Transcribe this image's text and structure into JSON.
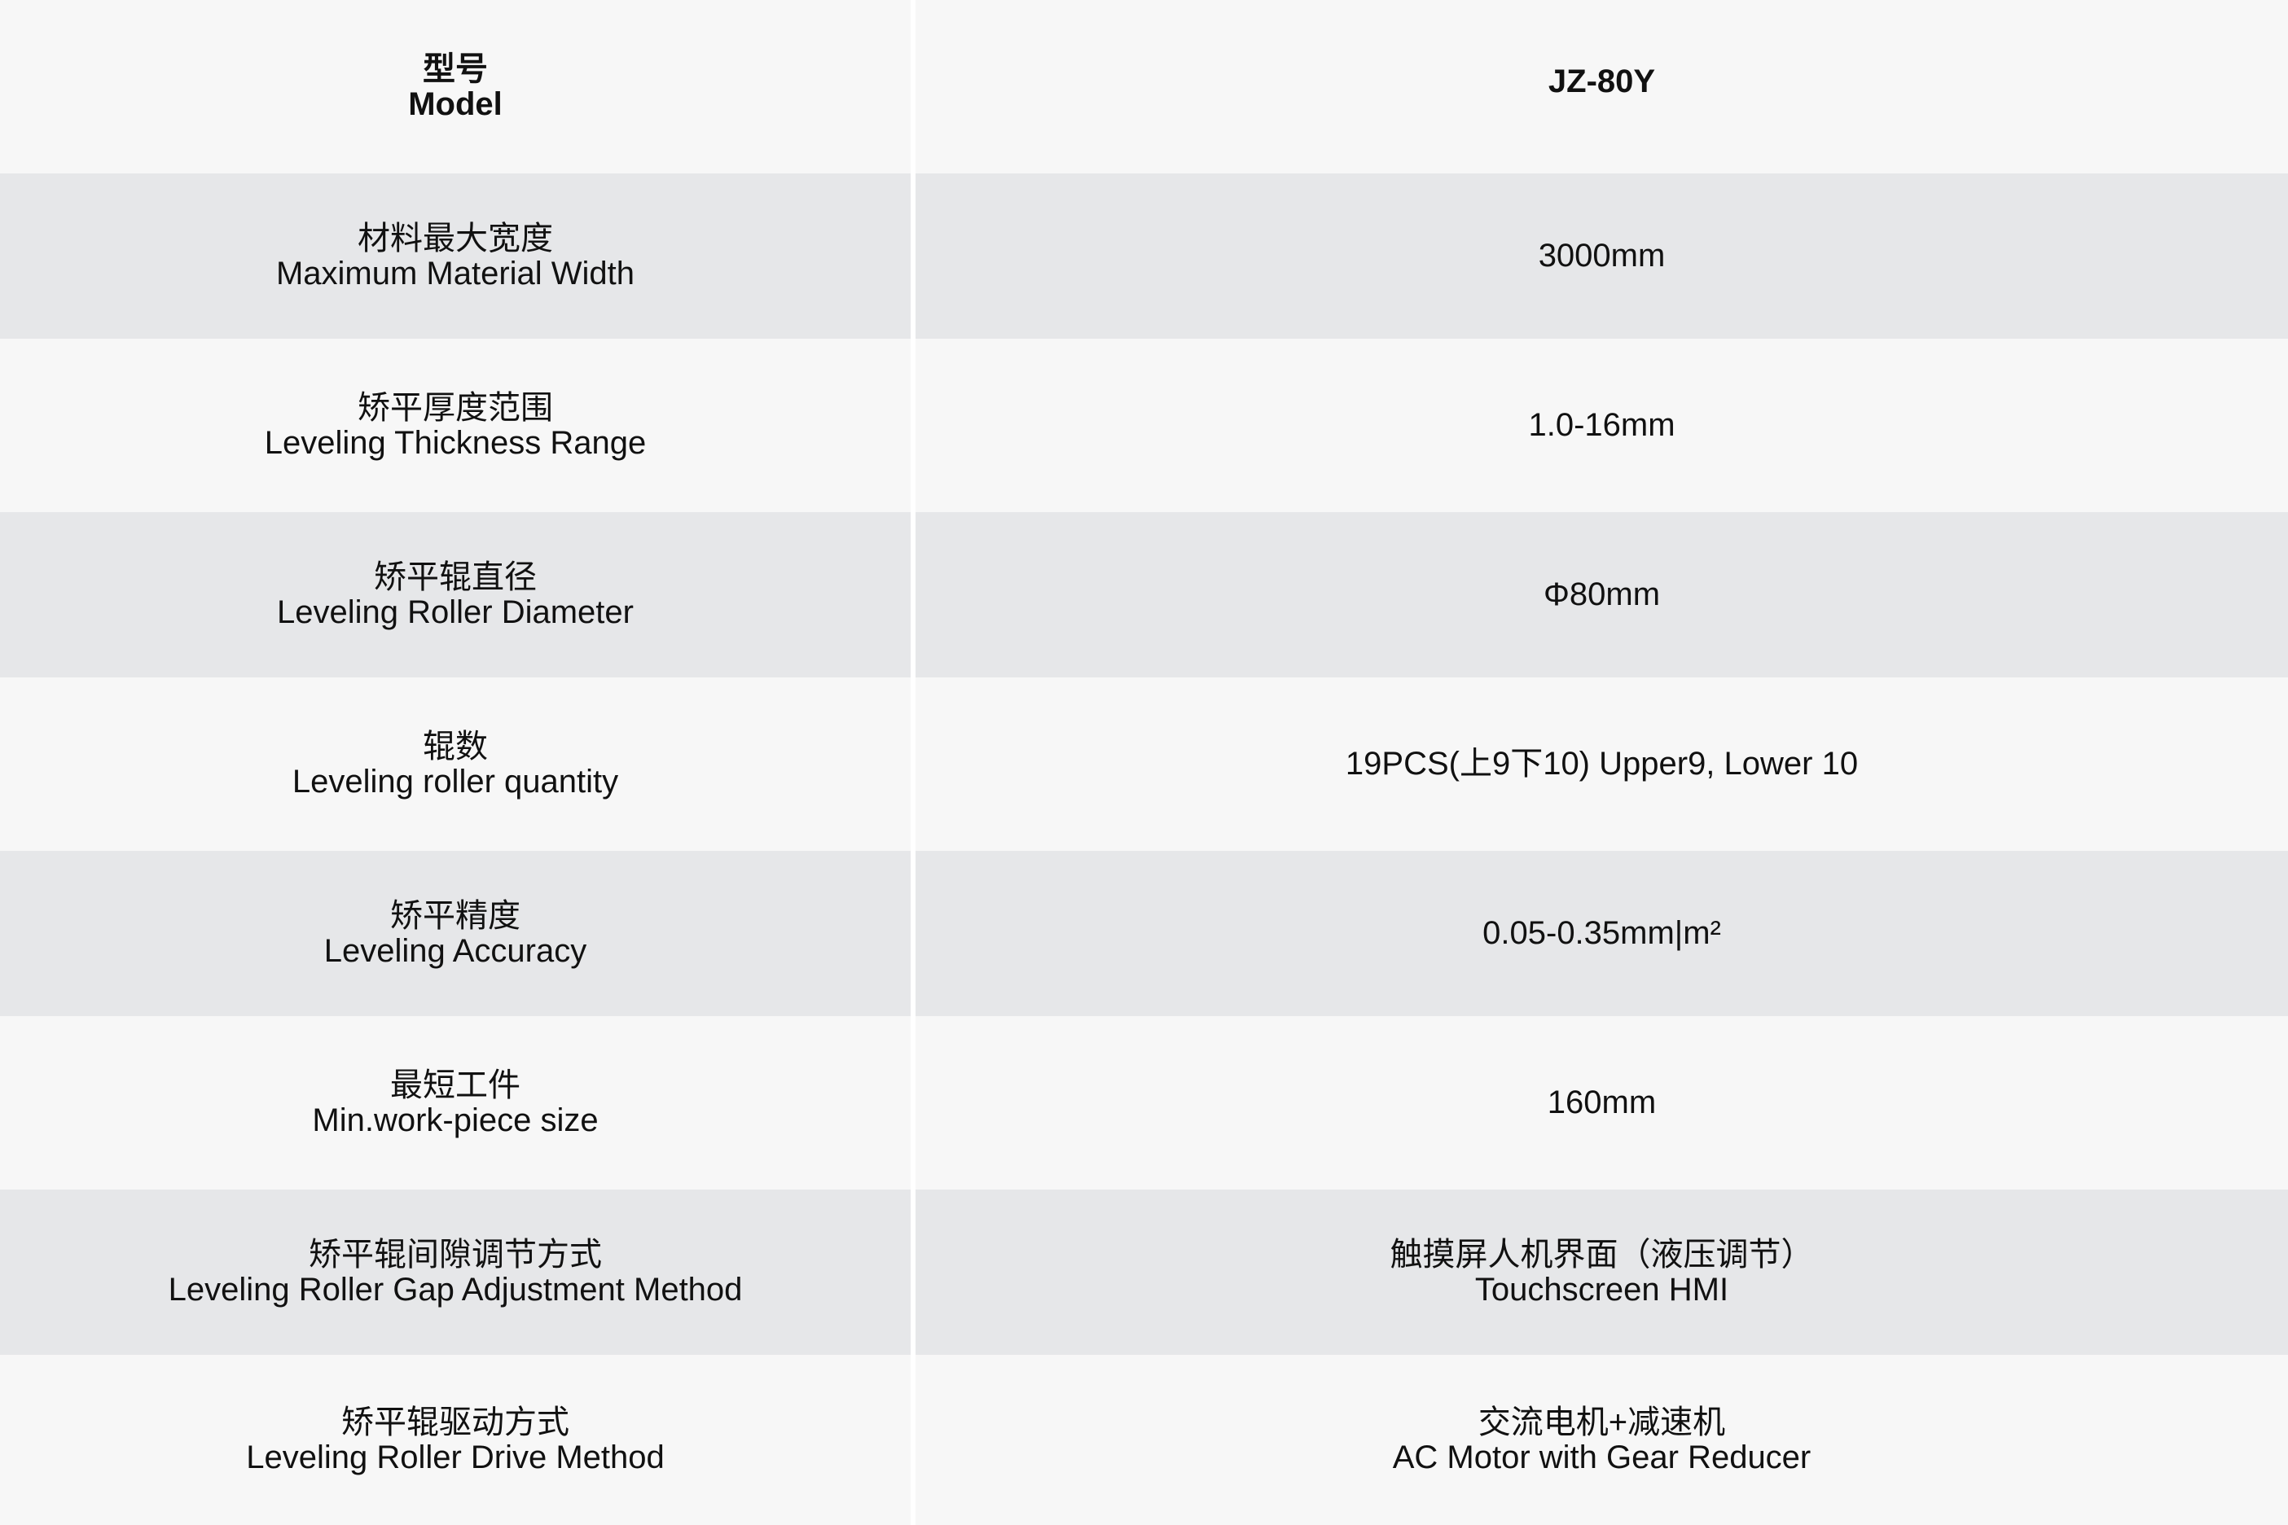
{
  "header": {
    "label_cn": "型号",
    "label_en": "Model",
    "value": "JZ-80Y"
  },
  "rows": [
    {
      "label_cn": "材料最大宽度",
      "label_en": "Maximum Material Width",
      "value_cn": "",
      "value": "3000mm"
    },
    {
      "label_cn": "矫平厚度范围",
      "label_en": "Leveling Thickness Range",
      "value_cn": "",
      "value": "1.0-16mm"
    },
    {
      "label_cn": "矫平辊直径",
      "label_en": "Leveling Roller Diameter",
      "value_cn": "",
      "value": "Φ80mm"
    },
    {
      "label_cn": "辊数",
      "label_en": "Leveling roller quantity",
      "value_cn": "",
      "value": "19PCS(上9下10) Upper9, Lower 10"
    },
    {
      "label_cn": "矫平精度",
      "label_en": "Leveling Accuracy",
      "value_cn": "",
      "value": "0.05-0.35mm|m²"
    },
    {
      "label_cn": "最短工件",
      "label_en": "Min.work-piece size",
      "value_cn": "",
      "value": "160mm"
    },
    {
      "label_cn": "矫平辊间隙调节方式",
      "label_en": "Leveling Roller Gap Adjustment Method",
      "value_cn": "触摸屏人机界面（液压调节）",
      "value": "Touchscreen HMI"
    },
    {
      "label_cn": "矫平辊驱动方式",
      "label_en": "Leveling Roller Drive Method",
      "value_cn": "交流电机+减速机",
      "value": "AC Motor with Gear Reducer"
    }
  ],
  "colors": {
    "row_light": "#f7f7f7",
    "row_dark": "#e6e7e9",
    "divider": "#ffffff"
  }
}
